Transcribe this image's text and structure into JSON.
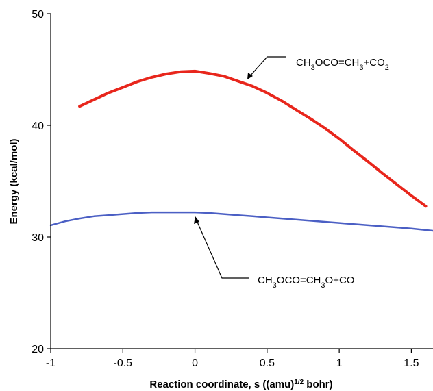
{
  "chart_data": {
    "type": "line",
    "xlabel": "Reaction coordinate, s ((amu)",
    "xlabel_sup": "1/2",
    "xlabel_end": " bohr)",
    "ylabel": "Energy (kcal/mol)",
    "xlim": [
      -1,
      1.65
    ],
    "ylim": [
      20,
      50
    ],
    "x_ticks": [
      "-1",
      "-0.5",
      "0",
      "0.5",
      "1",
      "1.5"
    ],
    "x_tick_values": [
      -1,
      -0.5,
      0,
      0.5,
      1,
      1.5
    ],
    "y_ticks": [
      "20",
      "30",
      "40",
      "50"
    ],
    "y_tick_values": [
      20,
      30,
      40,
      50
    ],
    "grid": false,
    "series": [
      {
        "color": "#e8261c",
        "label": {
          "before": "CH",
          "sub1": "3",
          "mid": "OCO=CH",
          "sub2": "3",
          "after": "+CO",
          "sub3": "2"
        },
        "points": [
          [
            -0.8,
            41.7
          ],
          [
            -0.7,
            42.3
          ],
          [
            -0.6,
            42.9
          ],
          [
            -0.5,
            43.4
          ],
          [
            -0.4,
            43.9
          ],
          [
            -0.3,
            44.3
          ],
          [
            -0.2,
            44.6
          ],
          [
            -0.1,
            44.8
          ],
          [
            0.0,
            44.85
          ],
          [
            0.1,
            44.65
          ],
          [
            0.2,
            44.4
          ],
          [
            0.3,
            43.95
          ],
          [
            0.4,
            43.5
          ],
          [
            0.5,
            42.9
          ],
          [
            0.6,
            42.2
          ],
          [
            0.7,
            41.4
          ],
          [
            0.8,
            40.6
          ],
          [
            0.9,
            39.75
          ],
          [
            1.0,
            38.8
          ],
          [
            1.1,
            37.75
          ],
          [
            1.2,
            36.75
          ],
          [
            1.3,
            35.7
          ],
          [
            1.4,
            34.7
          ],
          [
            1.5,
            33.7
          ],
          [
            1.6,
            32.75
          ]
        ]
      },
      {
        "color": "#4b5fc4",
        "label": {
          "before": "CH",
          "sub1": "3",
          "mid": "OCO=CH",
          "sub2": "3",
          "after": "O+CO",
          "sub3": ""
        },
        "points": [
          [
            -1.0,
            31.05
          ],
          [
            -0.9,
            31.4
          ],
          [
            -0.8,
            31.65
          ],
          [
            -0.7,
            31.85
          ],
          [
            -0.6,
            31.95
          ],
          [
            -0.5,
            32.05
          ],
          [
            -0.4,
            32.15
          ],
          [
            -0.3,
            32.2
          ],
          [
            -0.2,
            32.2
          ],
          [
            -0.1,
            32.2
          ],
          [
            0.0,
            32.2
          ],
          [
            0.1,
            32.15
          ],
          [
            0.2,
            32.05
          ],
          [
            0.3,
            31.95
          ],
          [
            0.4,
            31.85
          ],
          [
            0.5,
            31.75
          ],
          [
            0.6,
            31.65
          ],
          [
            0.7,
            31.55
          ],
          [
            0.8,
            31.45
          ],
          [
            0.9,
            31.35
          ],
          [
            1.0,
            31.25
          ],
          [
            1.1,
            31.15
          ],
          [
            1.2,
            31.05
          ],
          [
            1.3,
            30.95
          ],
          [
            1.4,
            30.85
          ],
          [
            1.5,
            30.75
          ],
          [
            1.65,
            30.55
          ]
        ]
      }
    ]
  }
}
